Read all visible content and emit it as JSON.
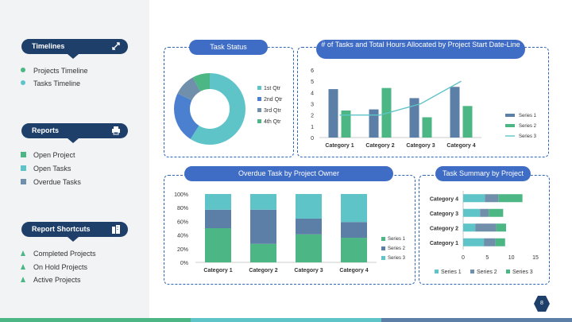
{
  "sidebar": {
    "timelines": {
      "title": "Timelines",
      "icon": "timeline-arrows-icon",
      "items": [
        "Projects Timeline",
        "Tasks Timeline"
      ]
    },
    "reports": {
      "title": "Reports",
      "icon": "printer-icon",
      "items": [
        "Open Project",
        "Open Tasks",
        "Overdue Tasks"
      ]
    },
    "shortcuts": {
      "title": "Report Shortcuts",
      "icon": "buildings-icon",
      "items": [
        "Completed Projects",
        "On Hold Projects",
        "Active Projects"
      ]
    }
  },
  "colors": {
    "blue": "#5b7fa6",
    "green": "#4cb685",
    "teal": "#5fc4c8",
    "navy": "#1f3f6b",
    "pill": "#3f6cc4",
    "gray_slate": "#6f8fab"
  },
  "page_number": "8",
  "chart_data": [
    {
      "id": "task-status",
      "type": "pie",
      "title": "Task Status",
      "labels": [
        "1st Qtr",
        "2nd Qtr",
        "3rd Qtr",
        "4th Qtr"
      ],
      "values": [
        59,
        23,
        10,
        8
      ],
      "colors": [
        "#5fc4c8",
        "#4b7fd0",
        "#6f8fab",
        "#4cb685"
      ]
    },
    {
      "id": "tasks-hours",
      "type": "bar",
      "title": "# of Tasks and Total Hours Allocated by Project Start Date-Line",
      "categories": [
        "Category 1",
        "Category 2",
        "Category 3",
        "Category 4"
      ],
      "series": [
        {
          "name": "Series 1",
          "values": [
            4.3,
            2.5,
            3.5,
            4.5
          ],
          "type": "bar",
          "color": "#5b7fa6"
        },
        {
          "name": "Series 2",
          "values": [
            2.4,
            4.4,
            1.8,
            2.8
          ],
          "type": "bar",
          "color": "#4cb685"
        },
        {
          "name": "Series 3",
          "values": [
            2,
            2,
            3,
            5
          ],
          "type": "line",
          "color": "#5fc4c8"
        }
      ],
      "ylim": [
        0,
        6
      ],
      "yticks": [
        "0",
        "1",
        "2",
        "3",
        "4",
        "5",
        "6"
      ]
    },
    {
      "id": "overdue-owner",
      "type": "bar",
      "title": "Overdue Task by Project Owner",
      "categories": [
        "Category 1",
        "Category 2",
        "Category 3",
        "Category 4"
      ],
      "series": [
        {
          "name": "Series 1",
          "values": [
            50,
            27,
            41,
            36
          ],
          "color": "#4cb685"
        },
        {
          "name": "Series 2",
          "values": [
            27,
            50,
            23,
            23
          ],
          "color": "#5b7fa6"
        },
        {
          "name": "Series 3",
          "values": [
            23,
            23,
            36,
            41
          ],
          "color": "#5fc4c8"
        }
      ],
      "ylim": [
        0,
        100
      ],
      "yticks": [
        "0%",
        "20%",
        "40%",
        "60%",
        "80%",
        "100%"
      ]
    },
    {
      "id": "task-summary",
      "type": "bar",
      "title": "Task Summary by Project",
      "categories": [
        "Category 4",
        "Category 3",
        "Category 2",
        "Category 1"
      ],
      "series": [
        {
          "name": "Series 1",
          "values": [
            4.5,
            3.5,
            2.5,
            4.3
          ],
          "color": "#5fc4c8"
        },
        {
          "name": "Series 2",
          "values": [
            2.8,
            1.8,
            4.4,
            2.4
          ],
          "color": "#6f8fab"
        },
        {
          "name": "Series 3",
          "values": [
            5,
            3,
            2,
            2
          ],
          "color": "#4cb685"
        }
      ],
      "xlim": [
        0,
        15
      ],
      "xticks": [
        "0",
        "5",
        "10",
        "15"
      ]
    }
  ]
}
